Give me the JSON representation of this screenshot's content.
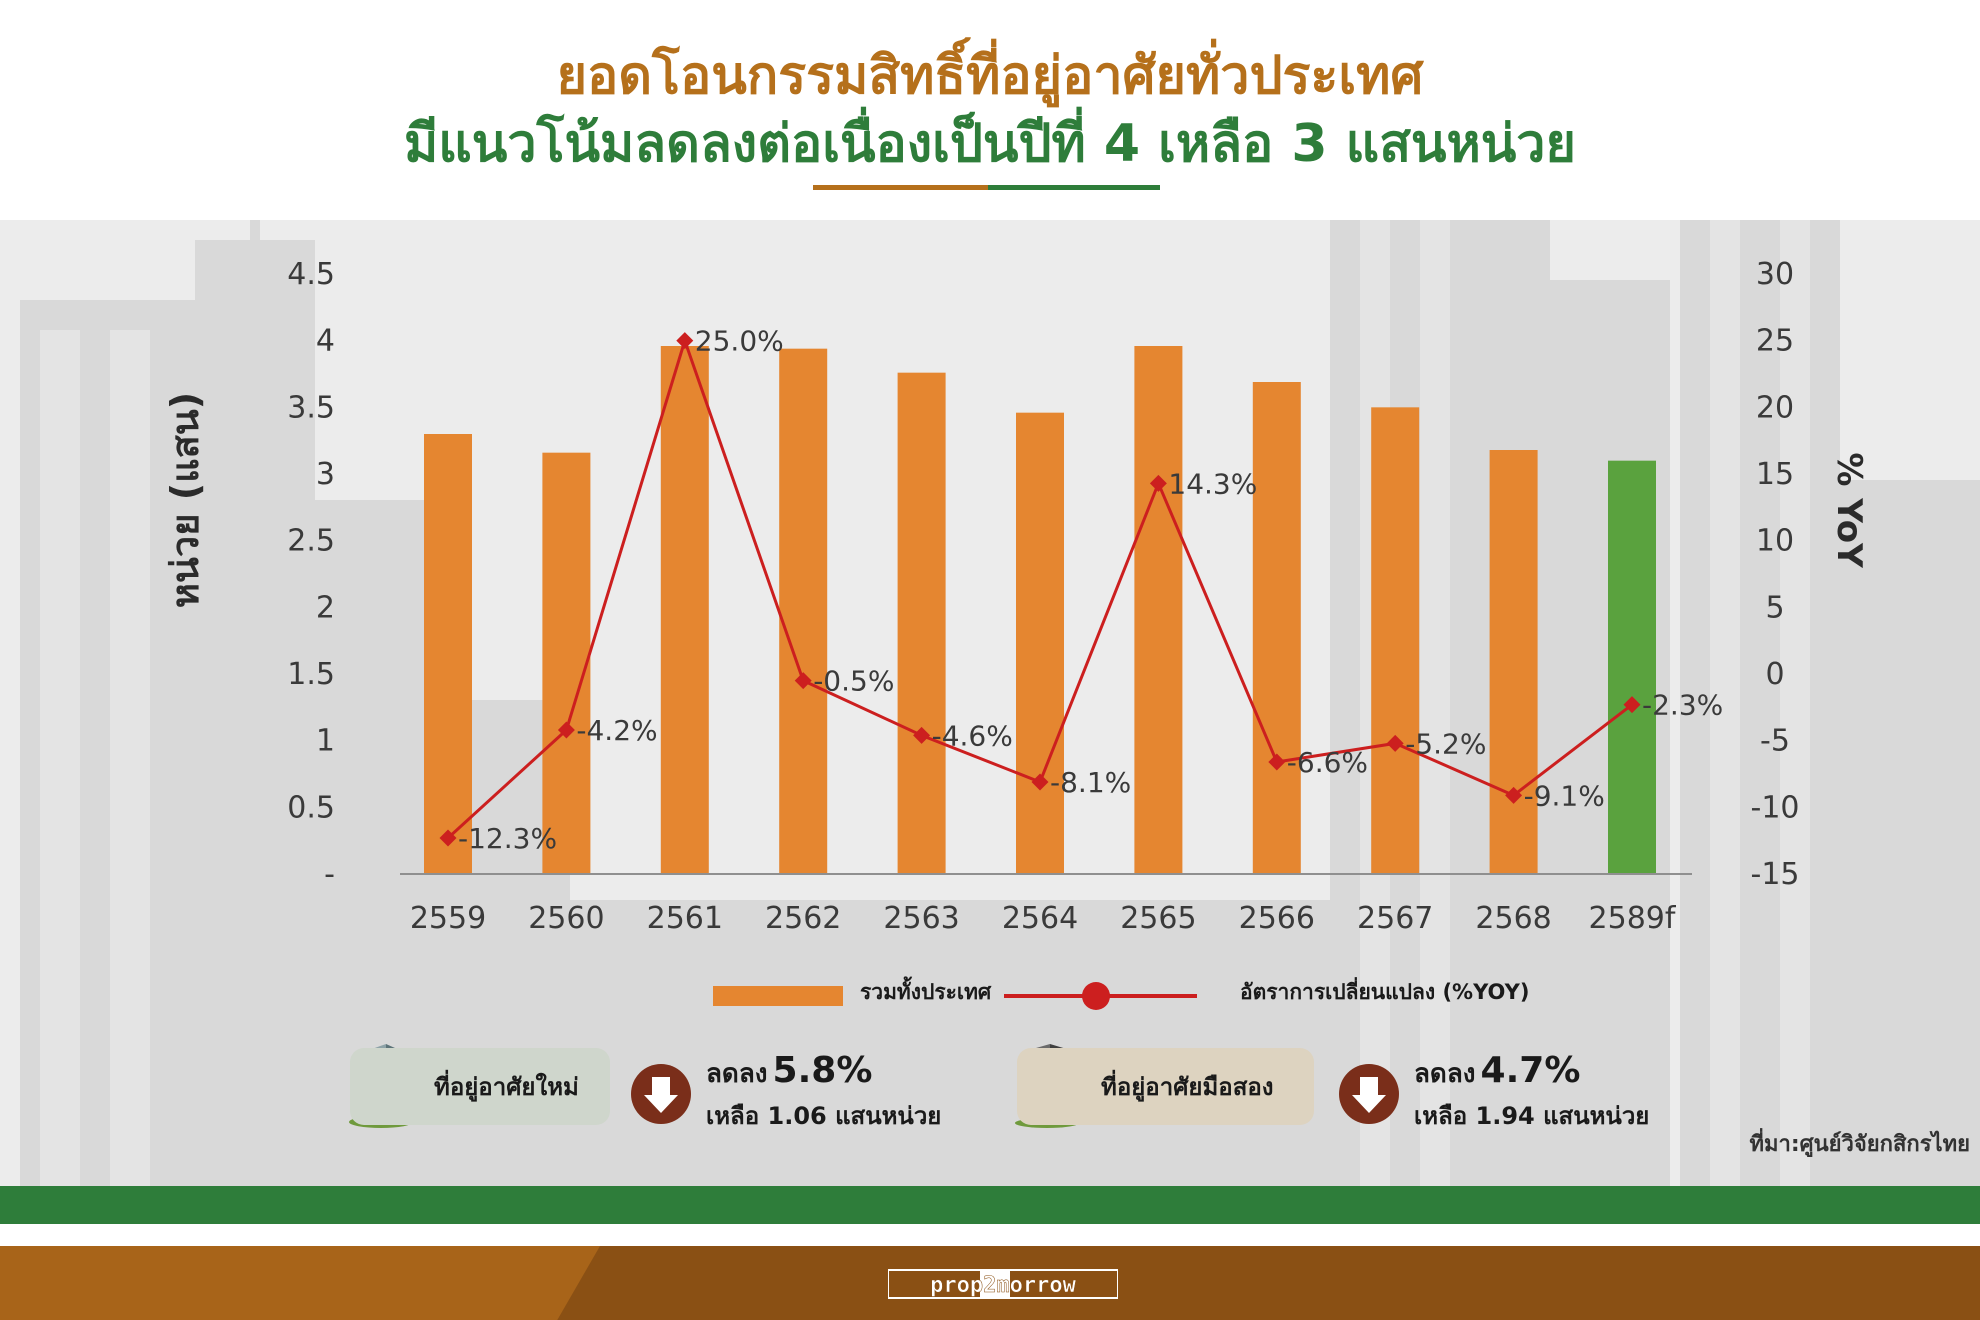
{
  "title": {
    "line1": "ยอดโอนกรรมสิทธิ์ที่อยู่อาศัยทั่วประเทศ",
    "line2": "มีแนวโน้มลดลงต่อเนื่องเป็นปีที่ 4 เหลือ 3 แสนหน่วย"
  },
  "colors": {
    "bar": "#e58630",
    "forecast_bar": "#5aa23e",
    "line": "#cc1f1f",
    "title_brown": "#b5701b",
    "title_green": "#2e7d3a"
  },
  "chart_data": {
    "type": "bar",
    "categories": [
      "2559",
      "2560",
      "2561",
      "2562",
      "2563",
      "2564",
      "2565",
      "2566",
      "2567",
      "2568",
      "2589f"
    ],
    "ylabel": "หน่วย (แสน)",
    "y2label": "% YoY",
    "ylim": [
      0,
      4.5
    ],
    "y2lim": [
      -15,
      30
    ],
    "yticks": [
      "-",
      "0.5",
      "1",
      "1.5",
      "2",
      "2.5",
      "3",
      "3.5",
      "4",
      "4.5"
    ],
    "y2ticks": [
      "-15",
      "-10",
      "-5",
      "0",
      "5",
      "10",
      "15",
      "20",
      "25",
      "30"
    ],
    "grid": false,
    "series": [
      {
        "name": "รวมทั้งประเทศ",
        "type": "bar",
        "values": [
          3.3,
          3.16,
          3.96,
          3.94,
          3.76,
          3.46,
          3.96,
          3.69,
          3.5,
          3.18,
          3.1
        ]
      },
      {
        "name": "อัตราการเปลี่ยนแปลง (%YOY)",
        "type": "line",
        "axis": "right",
        "values": [
          -12.3,
          -4.2,
          25.0,
          -0.5,
          -4.6,
          -8.1,
          14.3,
          -6.6,
          -5.2,
          -9.1,
          -2.3
        ],
        "labels": [
          "-12.3%",
          "-4.2%",
          "25.0%",
          "-0.5%",
          "-4.6%",
          "-8.1%",
          "14.3%",
          "-6.6%",
          "-5.2%",
          "-9.1%",
          "-2.3%"
        ]
      }
    ],
    "legend_position": "bottom"
  },
  "cards": {
    "new": {
      "label": "ที่อยู่อาศัยใหม่",
      "prefix": "ลดลง",
      "pct": "5.8%",
      "sub": "เหลือ 1.06 แสนหน่วย"
    },
    "used": {
      "label": "ที่อยู่อาศัยมือสอง",
      "prefix": "ลดลง",
      "pct": "4.7%",
      "sub": "เหลือ 1.94 แสนหน่วย"
    }
  },
  "source": "ที่มา:ศูนย์วิจัยกสิกรไทย",
  "brand": "prop2morrow"
}
